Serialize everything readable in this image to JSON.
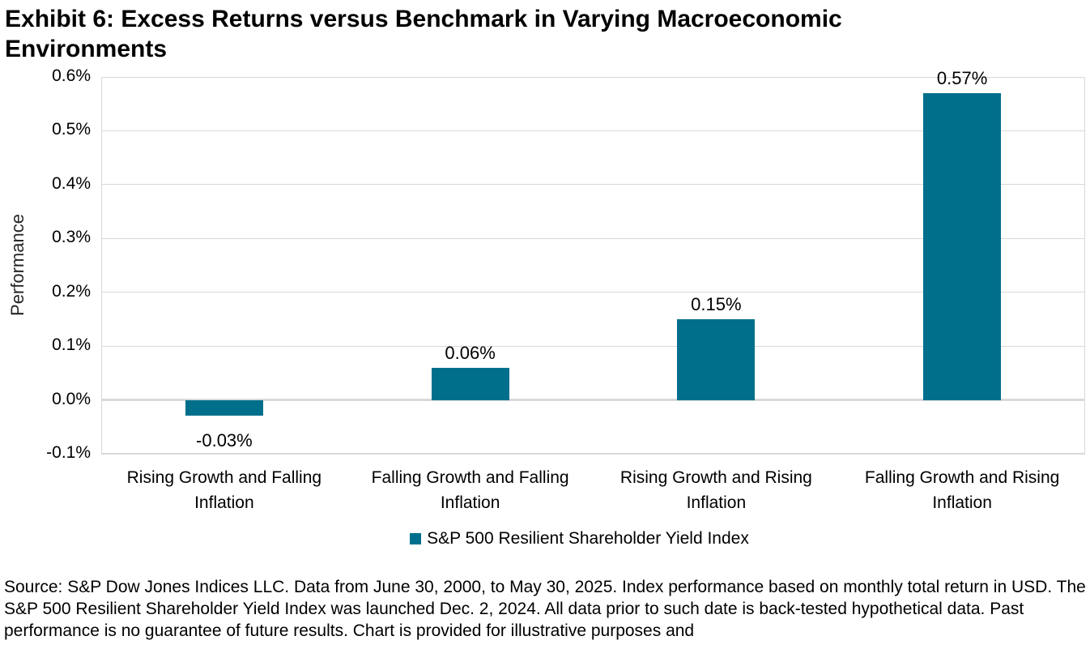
{
  "title": {
    "lines": [
      "Exhibit 6: Excess Returns versus Benchmark in Varying Macroeconomic",
      "Environments"
    ]
  },
  "chart_data": {
    "type": "bar",
    "title": "Exhibit 6: Excess Returns versus Benchmark in Varying Macroeconomic Environments",
    "xlabel": "",
    "ylabel": "Performance",
    "categories": [
      "Rising Growth and Falling Inflation",
      "Falling Growth and Falling Inflation",
      "Rising Growth and Rising Inflation",
      "Falling Growth and Rising Inflation"
    ],
    "series": [
      {
        "name": "S&P 500 Resilient Shareholder Yield Index",
        "values": [
          -0.03,
          0.06,
          0.15,
          0.57
        ]
      }
    ],
    "value_labels": [
      "-0.03%",
      "0.06%",
      "0.15%",
      "0.57%"
    ],
    "ylim": [
      -0.1,
      0.6
    ],
    "yticks": [
      0.6,
      0.5,
      0.4,
      0.3,
      0.2,
      0.1,
      0.0,
      -0.1
    ],
    "ytick_labels": [
      "0.6%",
      "0.5%",
      "0.4%",
      "0.3%",
      "0.2%",
      "0.1%",
      "0.0%",
      "-0.1%"
    ],
    "grid": true,
    "legend_position": "bottom",
    "bar_color": "#006F8C",
    "gridline_color": "#d9d9d9"
  },
  "legend": {
    "label": "S&P 500 Resilient Shareholder Yield Index",
    "swatch_color": "#006F8C"
  },
  "source_text": "Source: S&P Dow Jones Indices LLC. Data from June 30, 2000, to May 30, 2025. Index performance based on monthly total return in USD. The S&P 500 Resilient Shareholder Yield Index was launched Dec. 2, 2024. All data prior to such date is back-tested hypothetical data. Past performance is no guarantee of future results. Chart is provided for illustrative purposes and"
}
